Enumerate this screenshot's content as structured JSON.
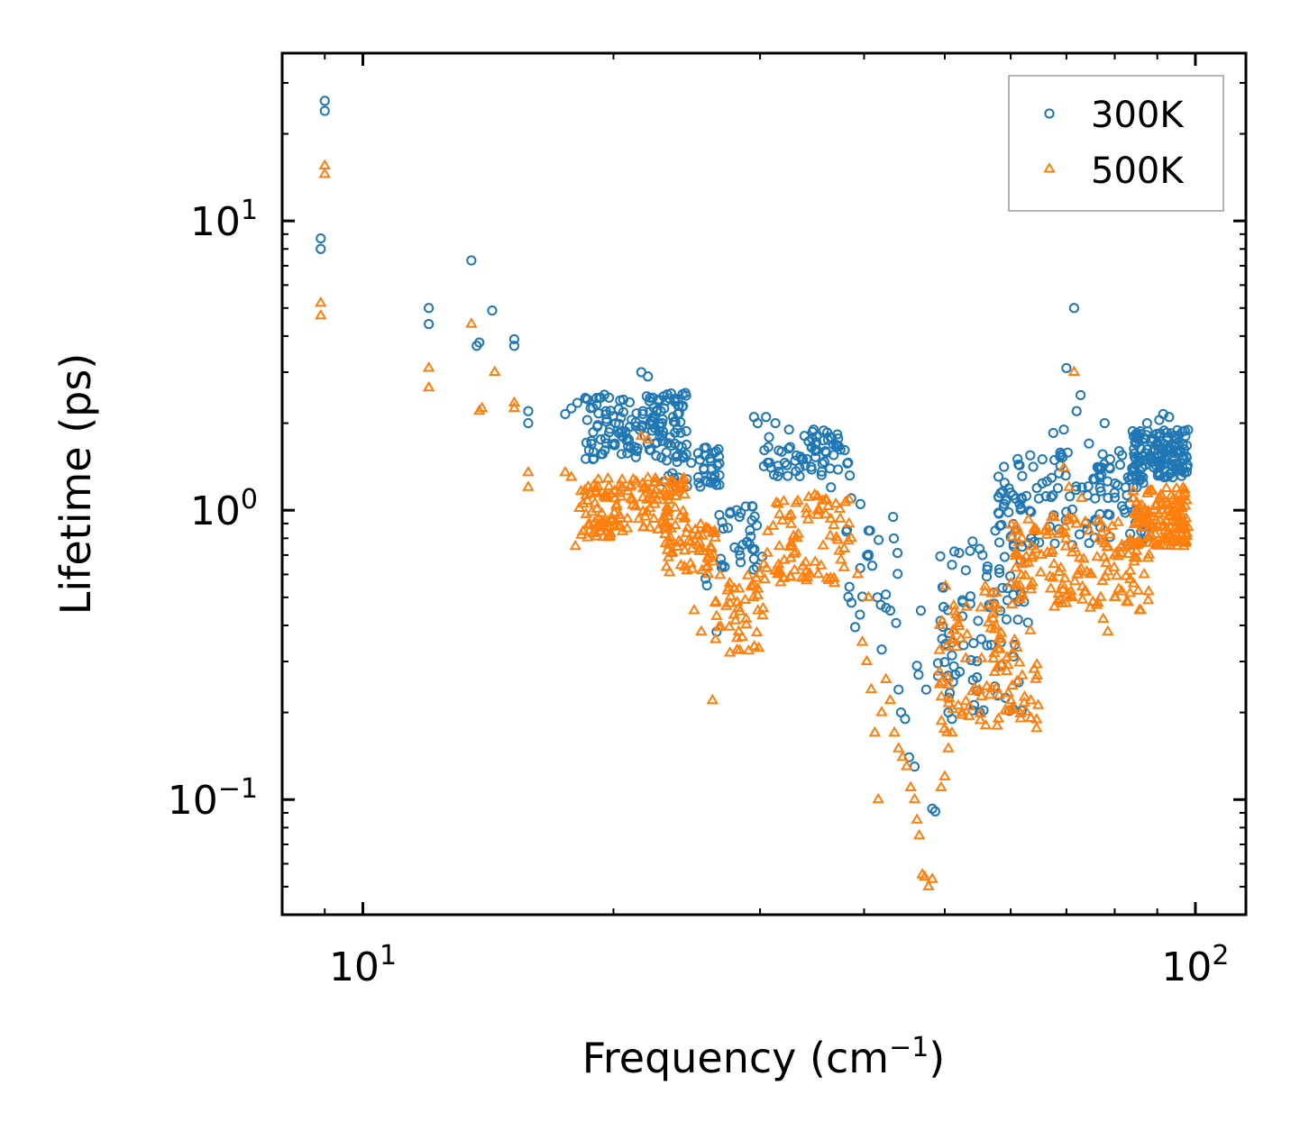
{
  "chart_data": {
    "type": "scatter",
    "xscale": "log",
    "yscale": "log",
    "xlabel": "Frequency (cm",
    "xlabel_sup": "−1",
    "xlabel_end": ")",
    "ylabel": "Lifetime (ps)",
    "xlim": [
      8,
      115
    ],
    "ylim": [
      0.04,
      38
    ],
    "xticks": [
      {
        "base": "10",
        "exp": "1",
        "value": 10
      },
      {
        "base": "10",
        "exp": "2",
        "value": 100
      }
    ],
    "yticks": [
      {
        "base": "10",
        "exp": "−1",
        "value": 0.1
      },
      {
        "base": "10",
        "exp": "0",
        "value": 1
      },
      {
        "base": "10",
        "exp": "1",
        "value": 10
      }
    ],
    "legend": {
      "position": "upper right"
    },
    "series": [
      {
        "name": "300K",
        "marker": "circle-open",
        "color": "#1f77b4",
        "points": [
          [
            8.9,
            8.7
          ],
          [
            8.9,
            8.0
          ],
          [
            9.0,
            26.0
          ],
          [
            9.0,
            24.0
          ],
          [
            12.0,
            5.0
          ],
          [
            12.0,
            4.4
          ],
          [
            13.5,
            7.3
          ],
          [
            13.7,
            3.7
          ],
          [
            13.8,
            3.8
          ],
          [
            14.3,
            4.9
          ],
          [
            15.2,
            3.9
          ],
          [
            15.2,
            3.7
          ],
          [
            15.8,
            2.2
          ],
          [
            15.8,
            2.0
          ],
          [
            17.5,
            2.15
          ],
          [
            17.8,
            2.25
          ],
          [
            18.1,
            2.35
          ],
          [
            18.6,
            2.05
          ],
          [
            21.6,
            3.0
          ],
          [
            22.0,
            2.9
          ],
          [
            22.8,
            2.2
          ],
          [
            25.8,
            0.58
          ],
          [
            25.9,
            0.55
          ],
          [
            26.6,
            0.38
          ],
          [
            29.5,
            2.1
          ],
          [
            29.8,
            2.0
          ],
          [
            30.5,
            2.1
          ],
          [
            31.3,
            2.0
          ],
          [
            32.5,
            1.9
          ],
          [
            34.8,
            1.9
          ],
          [
            36.5,
            1.2
          ],
          [
            38.6,
            1.1
          ],
          [
            39.6,
            1.05
          ],
          [
            40.5,
            0.85
          ],
          [
            41.5,
            0.5
          ],
          [
            42.5,
            0.46
          ],
          [
            43.0,
            0.45
          ],
          [
            42.0,
            0.33
          ],
          [
            44.0,
            0.24
          ],
          [
            44.3,
            0.2
          ],
          [
            44.8,
            0.19
          ],
          [
            45.3,
            0.14
          ],
          [
            46.0,
            0.13
          ],
          [
            46.3,
            0.29
          ],
          [
            46.5,
            0.27
          ],
          [
            46.8,
            0.45
          ],
          [
            47.5,
            0.24
          ],
          [
            48.3,
            0.093
          ],
          [
            48.7,
            0.091
          ],
          [
            49.8,
            0.54
          ],
          [
            50.5,
            0.2
          ],
          [
            51.0,
            0.19
          ],
          [
            51.5,
            0.27
          ],
          [
            52.5,
            0.43
          ],
          [
            53.0,
            0.62
          ],
          [
            54.0,
            0.78
          ],
          [
            55.5,
            0.7
          ],
          [
            57.5,
            0.85
          ],
          [
            58.0,
            0.98
          ],
          [
            60.5,
            0.75
          ],
          [
            61.5,
            1.05
          ],
          [
            63.5,
            0.8
          ],
          [
            65.5,
            1.5
          ],
          [
            67.5,
            1.85
          ],
          [
            69.5,
            1.9
          ],
          [
            70.0,
            3.1
          ],
          [
            71.5,
            5.0
          ],
          [
            72.0,
            2.2
          ],
          [
            72.8,
            2.5
          ],
          [
            74.5,
            1.7
          ],
          [
            76.5,
            1.4
          ],
          [
            77.8,
            2.0
          ],
          [
            79.0,
            1.5
          ],
          [
            81.0,
            1.6
          ],
          [
            83.0,
            1.3
          ],
          [
            85.0,
            1.2
          ],
          [
            86.5,
            1.3
          ],
          [
            87.5,
            2.0
          ],
          [
            90.5,
            2.05
          ],
          [
            91.5,
            2.15
          ],
          [
            93.0,
            2.1
          ],
          [
            95.0,
            1.6
          ],
          [
            97.0,
            1.35
          ]
        ],
        "bands": [
          {
            "x": [
              18.5,
              24.5
            ],
            "y": [
              1.5,
              2.55
            ],
            "n": 150
          },
          {
            "x": [
              23.0,
              27.0
            ],
            "y": [
              1.2,
              1.7
            ],
            "n": 45
          },
          {
            "x": [
              26.8,
              30.2
            ],
            "y": [
              0.62,
              1.05
            ],
            "n": 35
          },
          {
            "x": [
              30.0,
              38.5
            ],
            "y": [
              1.3,
              1.9
            ],
            "n": 70
          },
          {
            "x": [
              38.0,
              44.0
            ],
            "y": [
              0.38,
              1.0
            ],
            "n": 22
          },
          {
            "x": [
              49.0,
              63.0
            ],
            "y": [
              0.2,
              0.75
            ],
            "n": 80
          },
          {
            "x": [
              58.0,
              88.0
            ],
            "y": [
              0.75,
              1.6
            ],
            "n": 140
          },
          {
            "x": [
              84.0,
              98.0
            ],
            "y": [
              1.3,
              1.9
            ],
            "n": 140
          }
        ]
      },
      {
        "name": "500K",
        "marker": "triangle-open",
        "color": "#ff7f0e",
        "points": [
          [
            8.9,
            5.2
          ],
          [
            8.9,
            4.7
          ],
          [
            9.0,
            15.5
          ],
          [
            9.0,
            14.5
          ],
          [
            12.0,
            3.1
          ],
          [
            12.0,
            2.65
          ],
          [
            13.5,
            4.4
          ],
          [
            13.8,
            2.2
          ],
          [
            13.9,
            2.25
          ],
          [
            14.4,
            3.0
          ],
          [
            15.2,
            2.35
          ],
          [
            15.2,
            2.25
          ],
          [
            15.8,
            1.35
          ],
          [
            15.8,
            1.2
          ],
          [
            17.5,
            1.35
          ],
          [
            17.8,
            1.3
          ],
          [
            18.0,
            0.75
          ],
          [
            18.3,
            0.82
          ],
          [
            21.6,
            1.8
          ],
          [
            22.0,
            1.75
          ],
          [
            25.0,
            0.45
          ],
          [
            25.5,
            0.38
          ],
          [
            26.3,
            0.22
          ],
          [
            26.6,
            0.43
          ],
          [
            29.5,
            0.55
          ],
          [
            30.3,
            0.65
          ],
          [
            31.5,
            0.6
          ],
          [
            33.0,
            0.62
          ],
          [
            37.0,
            1.05
          ],
          [
            38.6,
            0.8
          ],
          [
            39.3,
            0.6
          ],
          [
            40.5,
            0.5
          ],
          [
            39.8,
            0.35
          ],
          [
            40.3,
            0.3
          ],
          [
            40.8,
            0.24
          ],
          [
            41.2,
            0.17
          ],
          [
            41.6,
            0.1
          ],
          [
            42.0,
            0.2
          ],
          [
            42.5,
            0.26
          ],
          [
            43.0,
            0.22
          ],
          [
            43.5,
            0.17
          ],
          [
            44.0,
            0.15
          ],
          [
            44.5,
            0.14
          ],
          [
            45.0,
            0.13
          ],
          [
            45.5,
            0.11
          ],
          [
            46.0,
            0.1
          ],
          [
            46.3,
            0.085
          ],
          [
            46.6,
            0.075
          ],
          [
            47.0,
            0.055
          ],
          [
            47.3,
            0.054
          ],
          [
            47.8,
            0.05
          ],
          [
            48.3,
            0.053
          ],
          [
            49.5,
            0.11
          ],
          [
            50.0,
            0.12
          ],
          [
            50.5,
            0.15
          ],
          [
            51.0,
            0.17
          ],
          [
            56.0,
            0.18
          ],
          [
            58.0,
            0.19
          ],
          [
            60.0,
            0.22
          ],
          [
            69.5,
            1.4
          ],
          [
            70.5,
            1.2
          ],
          [
            71.5,
            3.0
          ],
          [
            73.0,
            1.1
          ],
          [
            75.0,
            0.6
          ],
          [
            77.5,
            0.42
          ],
          [
            78.5,
            0.38
          ],
          [
            80.0,
            0.5
          ],
          [
            83.0,
            0.48
          ],
          [
            86.0,
            0.45
          ],
          [
            88.0,
            0.7
          ],
          [
            92.0,
            0.85
          ],
          [
            95.0,
            0.75
          ],
          [
            97.0,
            0.8
          ]
        ],
        "bands": [
          {
            "x": [
              18.2,
              24.5
            ],
            "y": [
              0.8,
              1.3
            ],
            "n": 150
          },
          {
            "x": [
              23.0,
              26.5
            ],
            "y": [
              0.6,
              0.9
            ],
            "n": 55
          },
          {
            "x": [
              26.5,
              30.5
            ],
            "y": [
              0.32,
              0.62
            ],
            "n": 45
          },
          {
            "x": [
              30.5,
              38.5
            ],
            "y": [
              0.55,
              1.15
            ],
            "n": 80
          },
          {
            "x": [
              49.0,
              65.0
            ],
            "y": [
              0.17,
              0.55
            ],
            "n": 110
          },
          {
            "x": [
              60.0,
              88.0
            ],
            "y": [
              0.45,
              0.95
            ],
            "n": 150
          },
          {
            "x": [
              84.0,
              98.0
            ],
            "y": [
              0.75,
              1.2
            ],
            "n": 130
          }
        ]
      }
    ]
  }
}
